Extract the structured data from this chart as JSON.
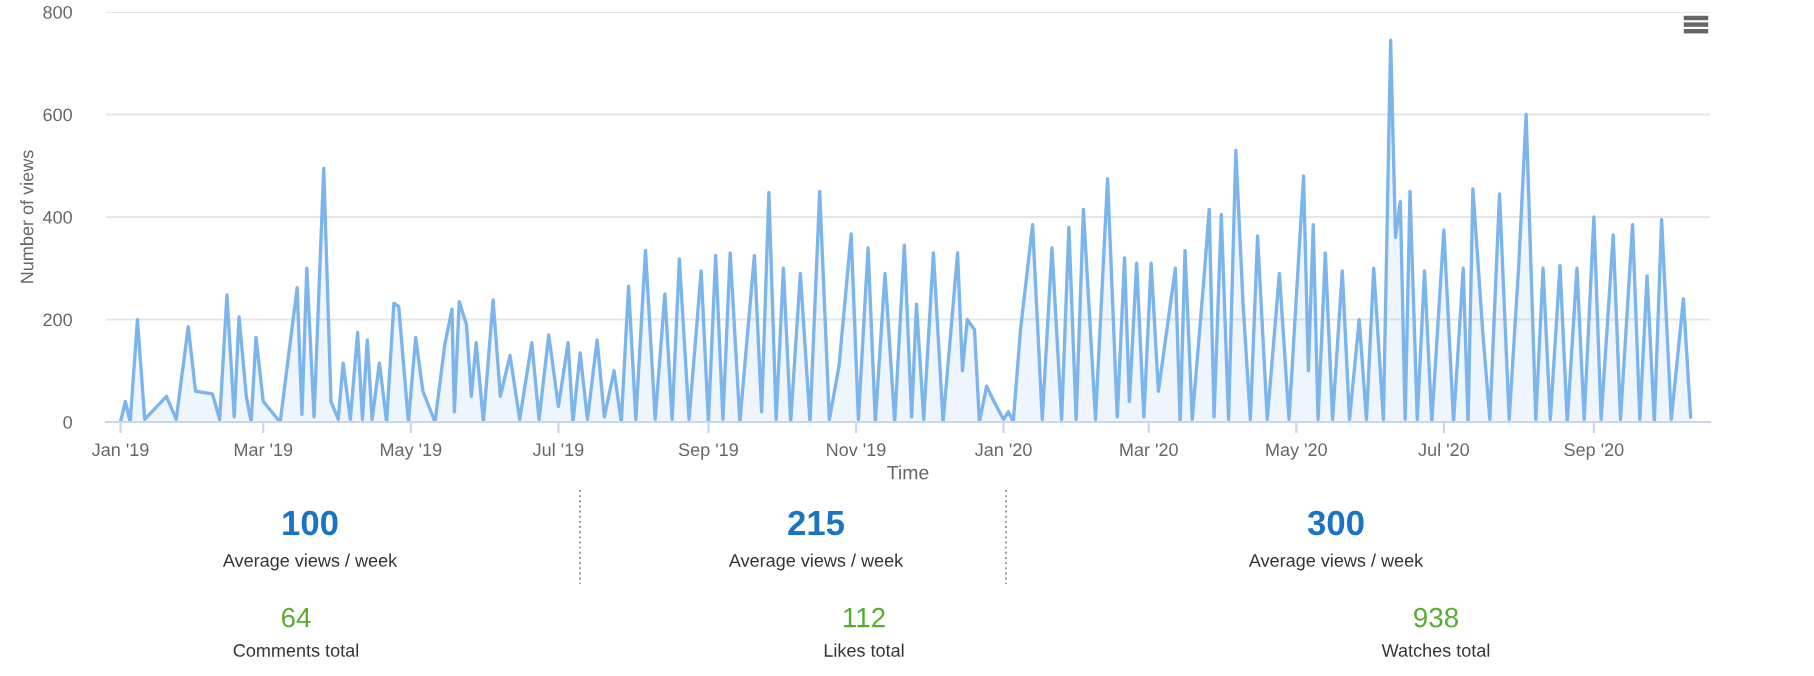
{
  "chart_data": [
    {
      "type": "area",
      "xlabel": "Time",
      "ylabel": "Number of views",
      "grid": "y",
      "marker": "none",
      "line_style": "solid",
      "xlim": [
        "2018-12-26",
        "2020-10-19"
      ],
      "ylim": [
        0,
        800
      ],
      "yticks": [
        0,
        200,
        400,
        600,
        800
      ],
      "xticks": [
        {
          "value": "2019-01-01",
          "label": "Jan '19"
        },
        {
          "value": "2019-03-01",
          "label": "Mar '19"
        },
        {
          "value": "2019-05-01",
          "label": "May '19"
        },
        {
          "value": "2019-07-01",
          "label": "Jul '19"
        },
        {
          "value": "2019-09-01",
          "label": "Sep '19"
        },
        {
          "value": "2019-11-01",
          "label": "Nov '19"
        },
        {
          "value": "2020-01-01",
          "label": "Jan '20"
        },
        {
          "value": "2020-03-01",
          "label": "Mar '20"
        },
        {
          "value": "2020-05-01",
          "label": "May '20"
        },
        {
          "value": "2020-07-01",
          "label": "Jul '20"
        },
        {
          "value": "2020-09-01",
          "label": "Sep '20"
        }
      ],
      "series": [
        {
          "color": "#7cb5ec",
          "x": [
            "2019-01-01",
            "2019-01-03",
            "2019-01-05",
            "2019-01-08",
            "2019-01-11",
            "2019-01-16",
            "2019-01-20",
            "2019-01-24",
            "2019-01-29",
            "2019-02-01",
            "2019-02-08",
            "2019-02-11",
            "2019-02-14",
            "2019-02-17",
            "2019-02-19",
            "2019-02-22",
            "2019-02-24",
            "2019-02-26",
            "2019-03-01",
            "2019-03-08",
            "2019-03-12",
            "2019-03-15",
            "2019-03-17",
            "2019-03-19",
            "2019-03-22",
            "2019-03-26",
            "2019-03-29",
            "2019-04-01",
            "2019-04-03",
            "2019-04-06",
            "2019-04-09",
            "2019-04-11",
            "2019-04-13",
            "2019-04-15",
            "2019-04-18",
            "2019-04-21",
            "2019-04-24",
            "2019-04-26",
            "2019-04-30",
            "2019-05-03",
            "2019-05-06",
            "2019-05-11",
            "2019-05-15",
            "2019-05-18",
            "2019-05-19",
            "2019-05-21",
            "2019-05-24",
            "2019-05-26",
            "2019-05-28",
            "2019-05-31",
            "2019-06-04",
            "2019-06-07",
            "2019-06-11",
            "2019-06-15",
            "2019-06-20",
            "2019-06-23",
            "2019-06-27",
            "2019-07-01",
            "2019-07-05",
            "2019-07-07",
            "2019-07-10",
            "2019-07-13",
            "2019-07-17",
            "2019-07-20",
            "2019-07-24",
            "2019-07-27",
            "2019-07-30",
            "2019-08-02",
            "2019-08-06",
            "2019-08-10",
            "2019-08-14",
            "2019-08-17",
            "2019-08-20",
            "2019-08-24",
            "2019-08-29",
            "2019-09-01",
            "2019-09-04",
            "2019-09-07",
            "2019-09-10",
            "2019-09-14",
            "2019-09-20",
            "2019-09-23",
            "2019-09-26",
            "2019-09-29",
            "2019-10-02",
            "2019-10-05",
            "2019-10-09",
            "2019-10-13",
            "2019-10-17",
            "2019-10-21",
            "2019-10-25",
            "2019-10-30",
            "2019-11-02",
            "2019-11-06",
            "2019-11-09",
            "2019-11-13",
            "2019-11-17",
            "2019-11-21",
            "2019-11-24",
            "2019-11-26",
            "2019-11-29",
            "2019-12-03",
            "2019-12-07",
            "2019-12-13",
            "2019-12-15",
            "2019-12-17",
            "2019-12-20",
            "2019-12-22",
            "2019-12-25",
            "2019-12-28",
            "2020-01-01",
            "2020-01-03",
            "2020-01-05",
            "2020-01-08",
            "2020-01-13",
            "2020-01-17",
            "2020-01-21",
            "2020-01-25",
            "2020-01-28",
            "2020-01-31",
            "2020-02-03",
            "2020-02-08",
            "2020-02-13",
            "2020-02-17",
            "2020-02-20",
            "2020-02-22",
            "2020-02-25",
            "2020-02-28",
            "2020-03-02",
            "2020-03-05",
            "2020-03-12",
            "2020-03-14",
            "2020-03-16",
            "2020-03-19",
            "2020-03-24",
            "2020-03-26",
            "2020-03-28",
            "2020-03-31",
            "2020-04-03",
            "2020-04-06",
            "2020-04-09",
            "2020-04-12",
            "2020-04-15",
            "2020-04-19",
            "2020-04-24",
            "2020-04-28",
            "2020-05-04",
            "2020-05-06",
            "2020-05-08",
            "2020-05-10",
            "2020-05-13",
            "2020-05-16",
            "2020-05-20",
            "2020-05-23",
            "2020-05-27",
            "2020-05-30",
            "2020-06-02",
            "2020-06-06",
            "2020-06-09",
            "2020-06-11",
            "2020-06-13",
            "2020-06-15",
            "2020-06-17",
            "2020-06-20",
            "2020-06-23",
            "2020-06-26",
            "2020-07-01",
            "2020-07-05",
            "2020-07-09",
            "2020-07-11",
            "2020-07-13",
            "2020-07-17",
            "2020-07-20",
            "2020-07-24",
            "2020-07-28",
            "2020-08-01",
            "2020-08-04",
            "2020-08-08",
            "2020-08-11",
            "2020-08-14",
            "2020-08-18",
            "2020-08-21",
            "2020-08-25",
            "2020-08-28",
            "2020-09-01",
            "2020-09-04",
            "2020-09-09",
            "2020-09-12",
            "2020-09-17",
            "2020-09-20",
            "2020-09-23",
            "2020-09-26",
            "2020-09-29",
            "2020-10-03",
            "2020-10-08",
            "2020-10-11"
          ],
          "values": [
            0,
            40,
            0,
            200,
            5,
            30,
            50,
            5,
            186,
            60,
            55,
            5,
            248,
            10,
            205,
            50,
            0,
            165,
            40,
            0,
            150,
            262,
            15,
            300,
            10,
            495,
            40,
            5,
            115,
            5,
            175,
            5,
            160,
            5,
            115,
            0,
            232,
            225,
            0,
            165,
            60,
            0,
            150,
            220,
            20,
            235,
            190,
            50,
            155,
            0,
            238,
            50,
            130,
            5,
            155,
            5,
            170,
            30,
            155,
            0,
            135,
            5,
            160,
            10,
            100,
            0,
            265,
            5,
            335,
            5,
            250,
            5,
            318,
            5,
            295,
            0,
            325,
            5,
            330,
            0,
            325,
            20,
            448,
            5,
            300,
            0,
            290,
            0,
            450,
            5,
            110,
            367,
            5,
            340,
            0,
            290,
            0,
            345,
            10,
            230,
            5,
            330,
            0,
            330,
            100,
            200,
            180,
            0,
            70,
            40,
            5,
            20,
            0,
            180,
            385,
            5,
            340,
            5,
            380,
            5,
            415,
            5,
            475,
            10,
            320,
            40,
            310,
            10,
            310,
            60,
            300,
            0,
            335,
            5,
            290,
            415,
            10,
            405,
            5,
            530,
            230,
            5,
            363,
            5,
            290,
            5,
            480,
            100,
            385,
            5,
            330,
            5,
            295,
            5,
            200,
            5,
            300,
            5,
            745,
            360,
            430,
            5,
            450,
            5,
            295,
            0,
            375,
            0,
            300,
            0,
            455,
            180,
            5,
            445,
            5,
            310,
            600,
            5,
            300,
            5,
            305,
            0,
            300,
            5,
            400,
            5,
            365,
            5,
            385,
            5,
            285,
            0,
            395,
            5,
            240,
            10
          ]
        }
      ]
    },
    {
      "type": "other",
      "annotations": [
        "100",
        "Average views / week",
        "215",
        "Average views / week",
        "300",
        "Average views / week",
        "64",
        "Comments total",
        "112",
        "Likes total",
        "938",
        "Watches total"
      ]
    }
  ]
}
